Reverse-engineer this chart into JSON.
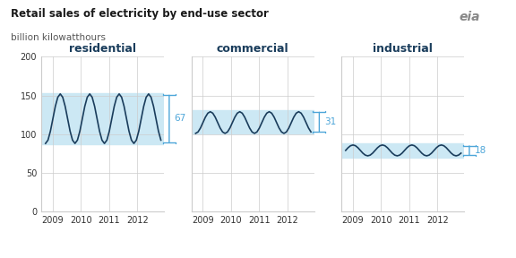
{
  "title": "Retail sales of electricity by end-use sector",
  "subtitle": "billion kilowatthours",
  "title_color": "#1a1a1a",
  "subtitle_color": "#555555",
  "background_color": "#ffffff",
  "grid_color": "#cccccc",
  "line_color": "#1a3d5c",
  "shade_color": "#cce8f4",
  "bracket_color": "#4da6d9",
  "panels": [
    "residential",
    "commercial",
    "industrial"
  ],
  "ylim": [
    0,
    200
  ],
  "yticks": [
    0,
    50,
    100,
    150,
    200
  ],
  "spread_labels": [
    "67",
    "31",
    "18"
  ],
  "spread_mid": [
    120,
    116,
    79
  ],
  "spread_half": [
    33.5,
    15.5,
    9
  ],
  "n_points": 48,
  "x_start": 2008.75,
  "x_end": 2012.83,
  "xticks": [
    2009,
    2010,
    2011,
    2012
  ],
  "xlim": [
    2008.6,
    2012.95
  ]
}
